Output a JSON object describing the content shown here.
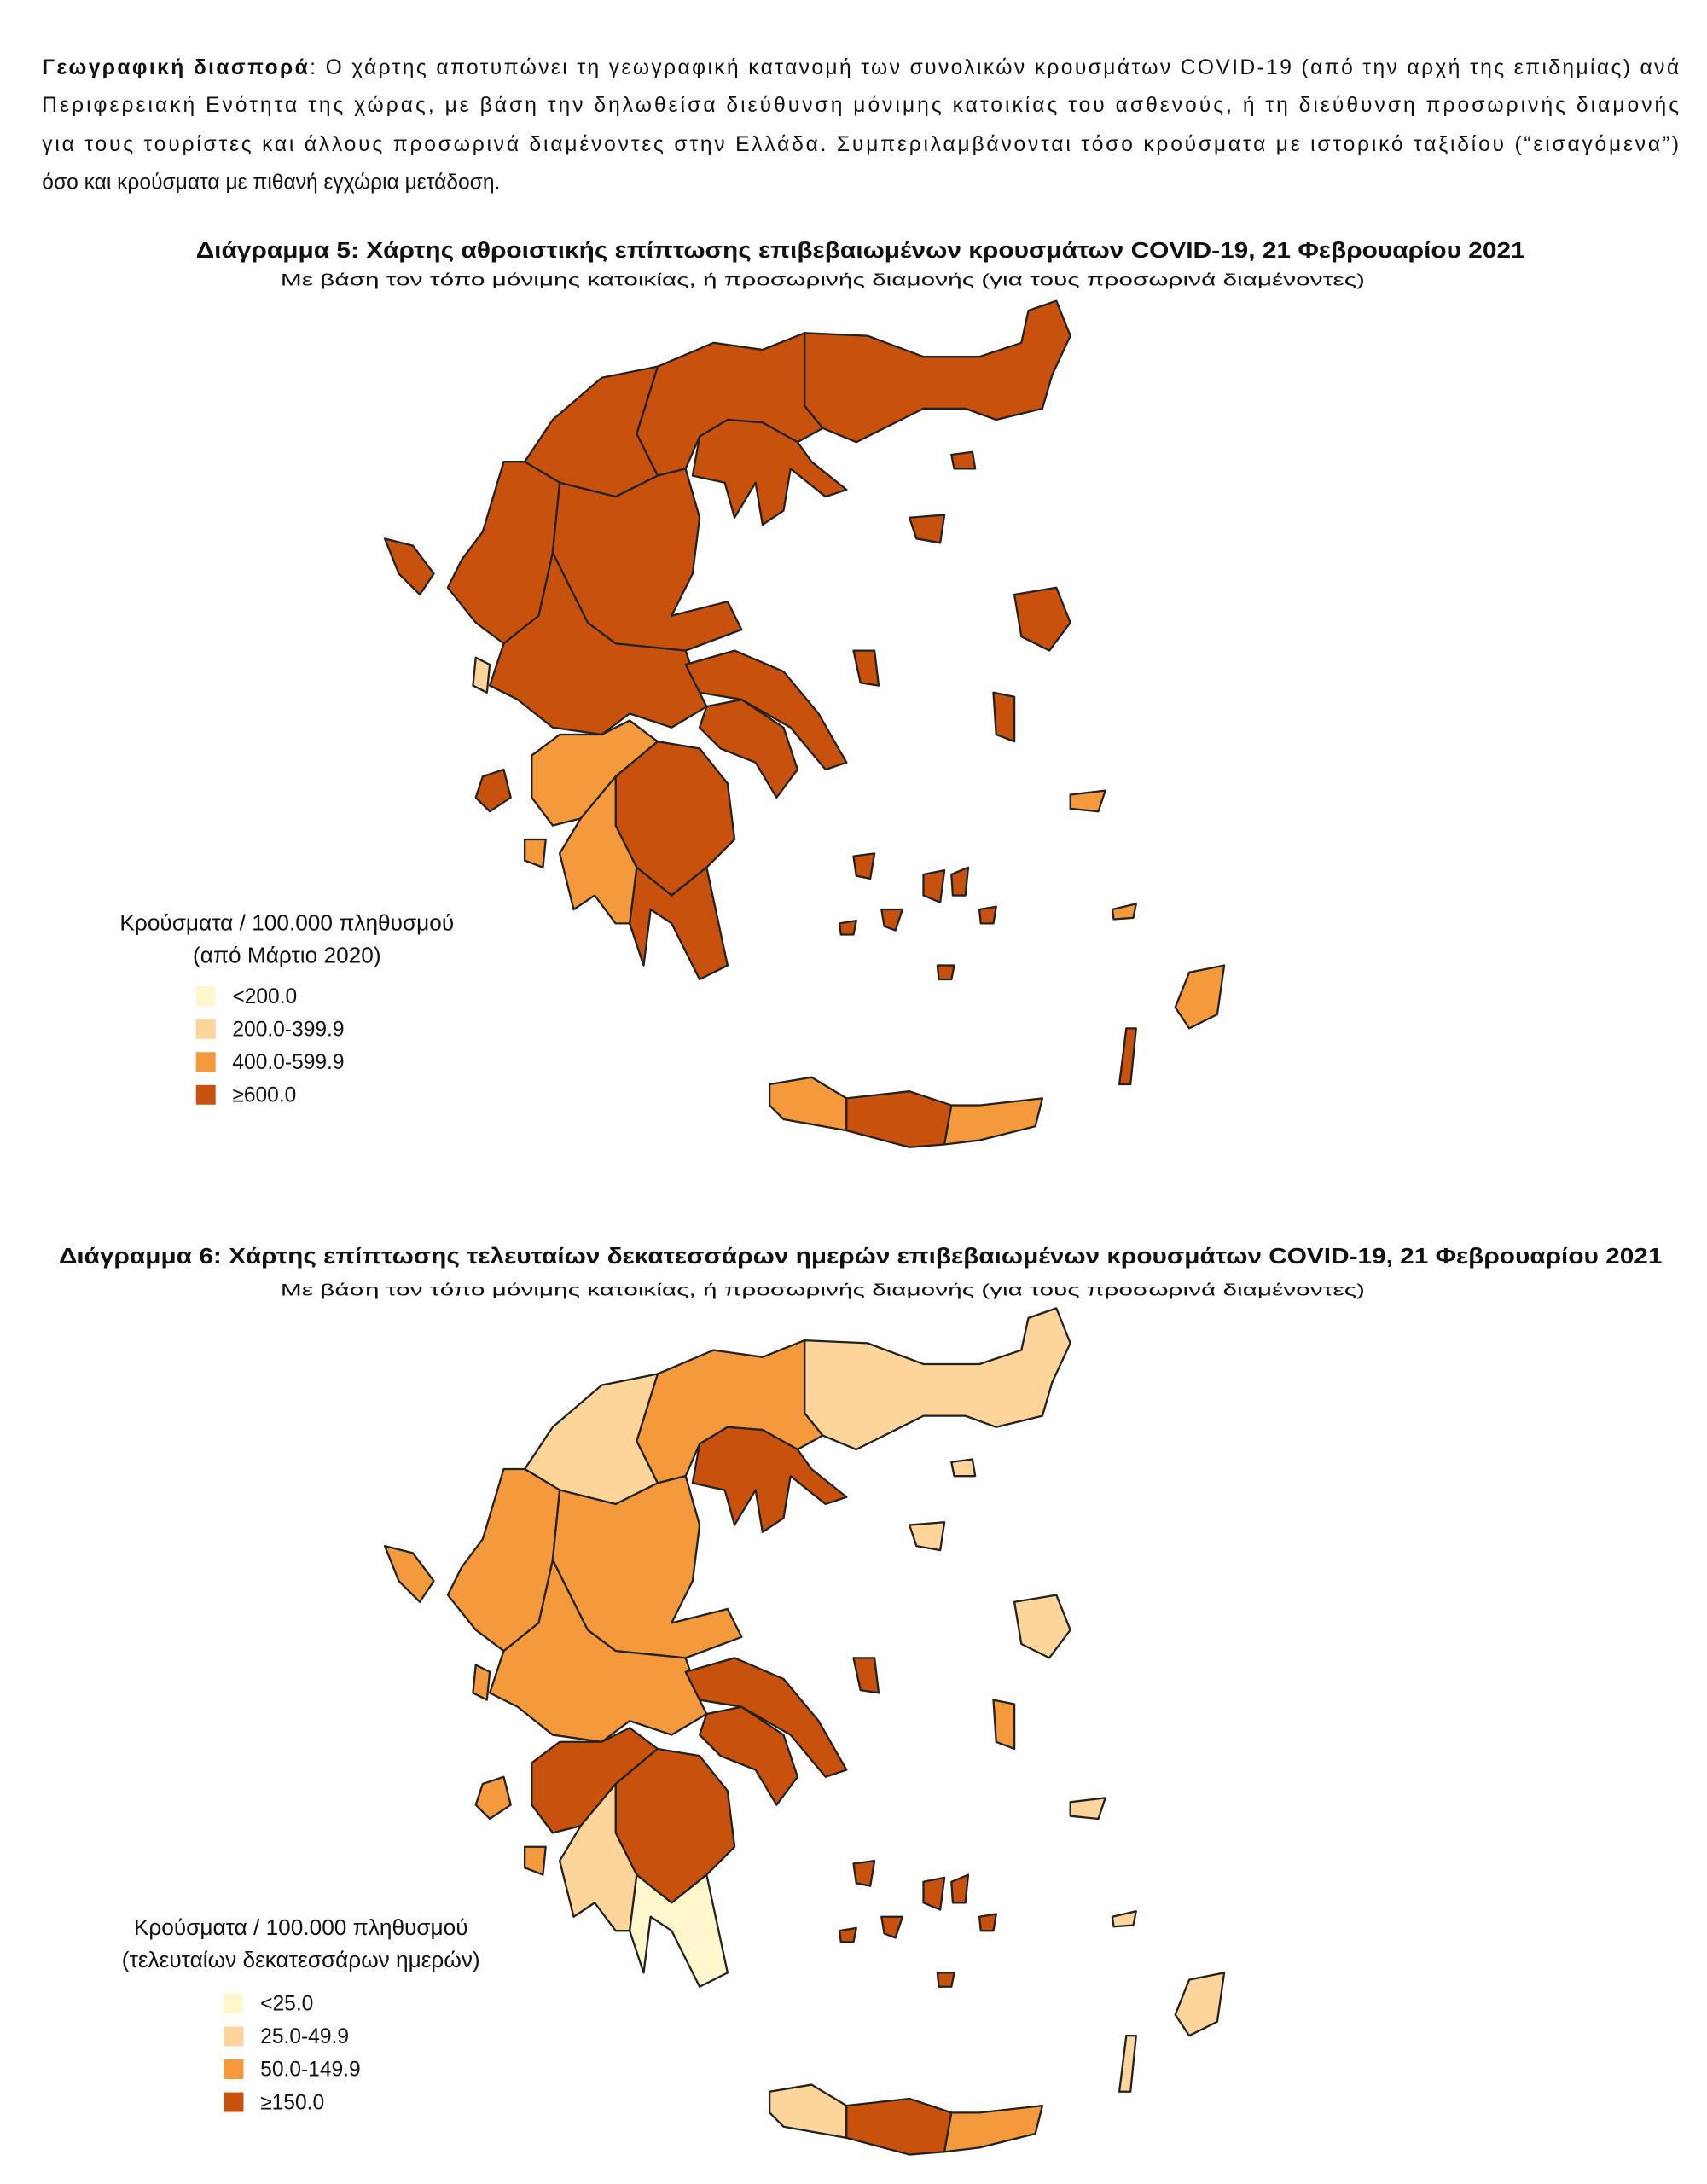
{
  "intro": {
    "lead": "Γεωγραφική διασπορά",
    "lines": [
      ": Ο χάρτης αποτυπώνει τη γεωγραφική κατανομή των συνολικών κρουσμάτων COVID-19 (από την αρχή της επιδημίας) ανά",
      "Περιφερειακή Ενότητα της χώρας, με βάση την δηλωθείσα διεύθυνση μόνιμης κατοικίας του ασθενούς, ή τη διεύθυνση προσωρινής διαμονής",
      "για τους τουρίστες και άλλους προσωρινά διαμένοντες στην Ελλάδα. Συμπεριλαμβάνονται τόσο κρούσματα με ιστορικό ταξιδίου (“εισαγόμενα”)",
      "όσο και κρούσματα με πιθανή εγχώρια μετάδοση."
    ]
  },
  "maps": [
    {
      "title": "Διάγραμμα 5: Χάρτης αθροιστικής επίπτωσης επιβεβαιωμένων κρουσμάτων COVID-19, 21 Φεβρουαρίου 2021",
      "subtitle": "Με βάση τον τόπο μόνιμης κατοικίας, ή προσωρινής διαμονής (για τους προσωρινά διαμένοντες)",
      "legend": {
        "title_lines": [
          "Κρούσματα / 100.000 πληθυσμού",
          "(από Μάρτιο 2020)"
        ],
        "items": [
          {
            "label": "<200.0",
            "color": "#fff7cc"
          },
          {
            "label": "200.0-399.9",
            "color": "#fdd49a"
          },
          {
            "label": "400.0-599.9",
            "color": "#f59a3c"
          },
          {
            "label": "≥600.0",
            "color": "#c8510e"
          }
        ]
      }
    },
    {
      "title": "Διάγραμμα 6: Χάρτης επίπτωσης τελευταίων δεκατεσσάρων ημερών επιβεβαιωμένων κρουσμάτων COVID-19, 21 Φεβρουαρίου 2021",
      "subtitle": "Με βάση τον τόπο μόνιμης κατοικίας, ή προσωρινής διαμονής (για τους προσωρινά διαμένοντες)",
      "legend": {
        "title_lines": [
          "Κρούσματα / 100.000 πληθυσμού",
          "(τελευταίων δεκατεσσάρων ημερών)"
        ],
        "items": [
          {
            "label": "<25.0",
            "color": "#fff7cc"
          },
          {
            "label": "25.0-49.9",
            "color": "#fdd49a"
          },
          {
            "label": "50.0-149.9",
            "color": "#f59a3c"
          },
          {
            "label": "≥150.0",
            "color": "#c8510e"
          }
        ]
      }
    }
  ]
}
